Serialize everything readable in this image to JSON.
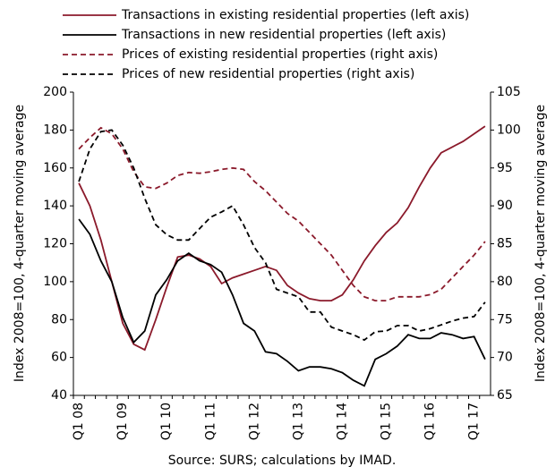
{
  "chart_data": {
    "type": "line",
    "categories": [
      "Q1 08",
      null,
      null,
      null,
      "Q1 09",
      null,
      null,
      null,
      "Q1 10",
      null,
      null,
      null,
      "Q1 11",
      null,
      null,
      null,
      "Q1 12",
      null,
      null,
      null,
      "Q1 13",
      null,
      null,
      null,
      "Q1 14",
      null,
      null,
      null,
      "Q1 15",
      null,
      null,
      null,
      "Q1 16",
      null,
      null,
      null,
      "Q1 17",
      null
    ],
    "series": [
      {
        "name": "Transactions in existing residential properties (left axis)",
        "color": "#8b1a2b",
        "dash": false,
        "values": [
          152,
          140,
          122,
          100,
          78,
          67,
          64,
          80,
          97,
          113,
          114,
          112,
          108,
          99,
          102,
          104,
          106,
          108,
          106,
          98,
          94,
          91,
          90,
          90,
          93,
          101,
          111,
          119,
          126,
          131,
          139,
          150,
          160,
          168,
          171,
          174,
          178,
          182
        ]
      },
      {
        "name": "Transactions in new residential properties (left axis)",
        "color": "#000000",
        "dash": false,
        "values": [
          133,
          125,
          111,
          100,
          81,
          68,
          74,
          93,
          101,
          111,
          115,
          111,
          109,
          105,
          93,
          78,
          74,
          63,
          62,
          58,
          53,
          55,
          55,
          54,
          52,
          48,
          45,
          59,
          62,
          66,
          72,
          70,
          70,
          73,
          72,
          70,
          71,
          59
        ]
      },
      {
        "name": "Prices of existing residential properties (right axis)",
        "color": "#8b1a2b",
        "dash": true,
        "axis": "y2",
        "values": [
          97.5,
          99,
          100.3,
          99.5,
          97.5,
          94.5,
          92.5,
          92.3,
          93,
          94,
          94.4,
          94.3,
          94.5,
          94.8,
          95,
          94.8,
          93.2,
          92,
          90.5,
          89,
          88,
          86.5,
          85,
          83.5,
          81.5,
          79.5,
          78,
          77.5,
          77.5,
          78,
          78,
          78,
          78.3,
          79,
          80.5,
          82,
          83.5,
          85.3
        ]
      },
      {
        "name": "Prices of new residential properties (right axis)",
        "color": "#000000",
        "dash": true,
        "axis": "y2",
        "values": [
          93.2,
          97.5,
          99.8,
          100,
          98,
          95,
          91,
          87.5,
          86.2,
          85.5,
          85.5,
          87,
          88.5,
          89.2,
          90,
          87.5,
          84.5,
          82.5,
          79,
          78.5,
          78,
          76,
          76,
          74,
          73.5,
          73,
          72.3,
          73.4,
          73.5,
          74.2,
          74.2,
          73.5,
          73.8,
          74.3,
          74.8,
          75.2,
          75.4,
          77.3
        ]
      }
    ],
    "ylim": [
      40,
      200
    ],
    "yticks": [
      40,
      60,
      80,
      100,
      120,
      140,
      160,
      180,
      200
    ],
    "y2lim": [
      65,
      105
    ],
    "y2ticks": [
      65,
      70,
      75,
      80,
      85,
      90,
      95,
      100,
      105
    ],
    "ylabel": "Index 2008=100, 4-quarter moving average",
    "y2label": "Index 2008=100, 4-quarter moving average",
    "source": "Source: SURS; calculations by IMAD.",
    "legend": "top-left"
  }
}
